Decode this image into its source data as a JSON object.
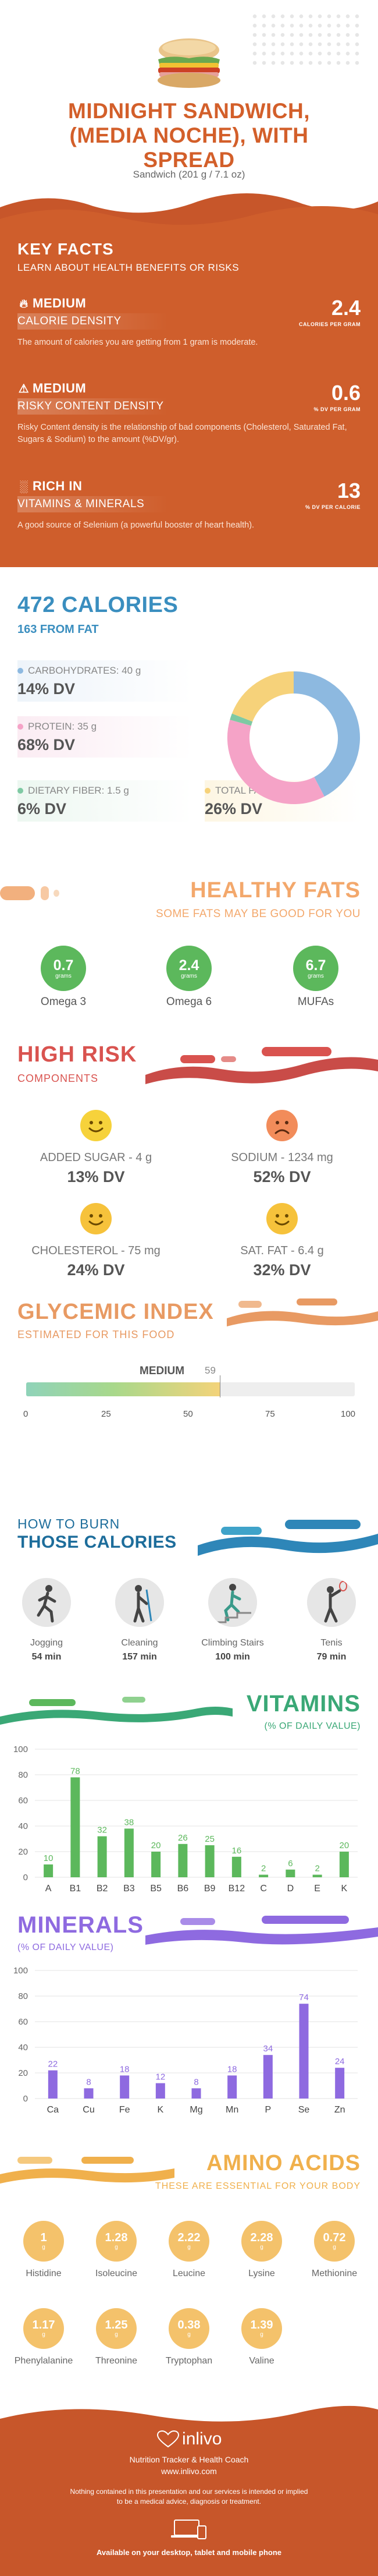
{
  "header": {
    "title_lines": [
      "MIDNIGHT SANDWICH,",
      "(MEDIA NOCHE), WITH",
      "SPREAD"
    ],
    "serving": "Sandwich (201 g / 7.1 oz)"
  },
  "key_facts": {
    "title": "KEY FACTS",
    "subtitle": "LEARN ABOUT HEALTH BENEFITS OR RISKS",
    "facts": [
      {
        "level": "MEDIUM",
        "label": "CALORIE DENSITY",
        "value": "2.4",
        "unit": "CALORIES PER GRAM",
        "description": "The amount of calories you are getting from 1 gram is moderate.",
        "icon": "flame-icon"
      },
      {
        "level": "MEDIUM",
        "label": "RISKY CONTENT DENSITY",
        "value": "0.6",
        "unit": "% DV PER GRAM",
        "description": "Risky Content density is the relationship of bad components (Cholesterol, Saturated Fat, Sugars & Sodium) to the amount (%DV/gr).",
        "icon": "warning-icon"
      },
      {
        "level": "RICH  IN",
        "label": "VITAMINS & MINERALS",
        "value": "13",
        "unit": "% DV PER CALORIE",
        "description": "A good source of Selenium (a powerful booster of heart health).",
        "icon": "chart-icon"
      }
    ]
  },
  "calories": {
    "title": "472 CALORIES",
    "from_fat": "163 FROM FAT",
    "macros": [
      {
        "name": "CARBOHYDRATES: 40 g",
        "dv": "14% DV",
        "color": "#8db9e0"
      },
      {
        "name": "PROTEIN: 35 g",
        "dv": "68% DV",
        "color": "#f5a3c7"
      },
      {
        "name": "DIETARY FIBER: 1.5 g",
        "dv": "6% DV",
        "color": "#7fc9a3"
      },
      {
        "name": "TOTAL FAT: 18 g",
        "dv": "26% DV",
        "color": "#f6d27a"
      }
    ],
    "donut": [
      {
        "name": "Carbohydrates",
        "value": 40,
        "color": "#8db9e0"
      },
      {
        "name": "Protein",
        "value": 35,
        "color": "#f5a3c7"
      },
      {
        "name": "Fiber",
        "value": 1.5,
        "color": "#7fc9a3"
      },
      {
        "name": "Fat",
        "value": 18,
        "color": "#f6d27a"
      }
    ]
  },
  "healthy_fats": {
    "title": "HEALTHY FATS",
    "subtitle": "SOME FATS MAY BE GOOD FOR YOU",
    "items": [
      {
        "value": "0.7",
        "unit": "grams",
        "name": "Omega 3"
      },
      {
        "value": "2.4",
        "unit": "grams",
        "name": "Omega 6"
      },
      {
        "value": "6.7",
        "unit": "grams",
        "name": "MUFAs"
      }
    ]
  },
  "high_risk": {
    "title": "HIGH RISK",
    "subtitle": "COMPONENTS",
    "items": [
      {
        "name": "ADDED SUGAR - 4 g",
        "dv": "13% DV",
        "mood": "happy"
      },
      {
        "name": "SODIUM - 1234 mg",
        "dv": "52% DV",
        "mood": "sad"
      },
      {
        "name": "CHOLESTEROL - 75 mg",
        "dv": "24% DV",
        "mood": "happy"
      },
      {
        "name": "SAT. FAT - 6.4 g",
        "dv": "32% DV",
        "mood": "happy"
      }
    ]
  },
  "glycemic": {
    "title": "GLYCEMIC INDEX",
    "subtitle": "ESTIMATED FOR THIS FOOD",
    "level": "MEDIUM",
    "value": "59",
    "value_num": 59,
    "ticks": [
      "0",
      "25",
      "50",
      "75",
      "100"
    ]
  },
  "burn": {
    "title_line1": "HOW TO BURN",
    "title_line2": "THOSE CALORIES",
    "activities": [
      {
        "name": "Jogging",
        "minutes": "54 min",
        "icon": "jogging-icon"
      },
      {
        "name": "Cleaning",
        "minutes": "157 min",
        "icon": "cleaning-icon"
      },
      {
        "name": "Climbing Stairs",
        "minutes": "100 min",
        "icon": "stairs-icon"
      },
      {
        "name": "Tenis",
        "minutes": "79 min",
        "icon": "tennis-icon"
      }
    ]
  },
  "vitamins": {
    "title": "VITAMINS",
    "subtitle": "(% OF DAILY VALUE)",
    "color": "#5cb85c"
  },
  "minerals": {
    "title": "MINERALS",
    "subtitle": "(% OF DAILY VALUE)",
    "color": "#8e6ae0"
  },
  "chart_data": [
    {
      "type": "bar",
      "title": "VITAMINS",
      "categories": [
        "A",
        "B1",
        "B2",
        "B3",
        "B5",
        "B6",
        "B9",
        "B12",
        "C",
        "D",
        "E",
        "K"
      ],
      "values": [
        10,
        78,
        32,
        38,
        20,
        26,
        25,
        16,
        2,
        6,
        2,
        20
      ],
      "yticks": [
        "0",
        "20",
        "40",
        "60",
        "80",
        "100"
      ],
      "ylim": [
        0,
        100
      ],
      "grid": true
    },
    {
      "type": "bar",
      "title": "MINERALS",
      "categories": [
        "Ca",
        "Cu",
        "Fe",
        "K",
        "Mg",
        "Mn",
        "P",
        "Se",
        "Zn"
      ],
      "values": [
        22,
        8,
        18,
        12,
        8,
        18,
        34,
        74,
        24
      ],
      "yticks": [
        "0",
        "20",
        "40",
        "60",
        "80",
        "100"
      ],
      "ylim": [
        0,
        100
      ],
      "grid": true
    }
  ],
  "amino_acids": {
    "title": "AMINO ACIDS",
    "subtitle": "THESE ARE ESSENTIAL FOR YOUR BODY",
    "items": [
      {
        "value": "1",
        "unit": "g",
        "name": "Histidine"
      },
      {
        "value": "1.28",
        "unit": "g",
        "name": "Isoleucine"
      },
      {
        "value": "2.22",
        "unit": "g",
        "name": "Leucine"
      },
      {
        "value": "2.28",
        "unit": "g",
        "name": "Lysine"
      },
      {
        "value": "0.72",
        "unit": "g",
        "name": "Methionine"
      },
      {
        "value": "1.17",
        "unit": "g",
        "name": "Phenylalanine"
      },
      {
        "value": "1.25",
        "unit": "g",
        "name": "Threonine"
      },
      {
        "value": "0.38",
        "unit": "g",
        "name": "Tryptophan"
      },
      {
        "value": "1.39",
        "unit": "g",
        "name": "Valine"
      }
    ]
  },
  "footer": {
    "brand": "inlivo",
    "tagline": "Nutrition Tracker & Health Coach",
    "url": "www.inlivo.com",
    "disclaimer_1": "Nothing contained in this presentation and our services is intended or implied",
    "disclaimer_2": "to be a medical advice, diagnosis or treatment.",
    "available": "Available on your desktop, tablet and mobile phone"
  }
}
